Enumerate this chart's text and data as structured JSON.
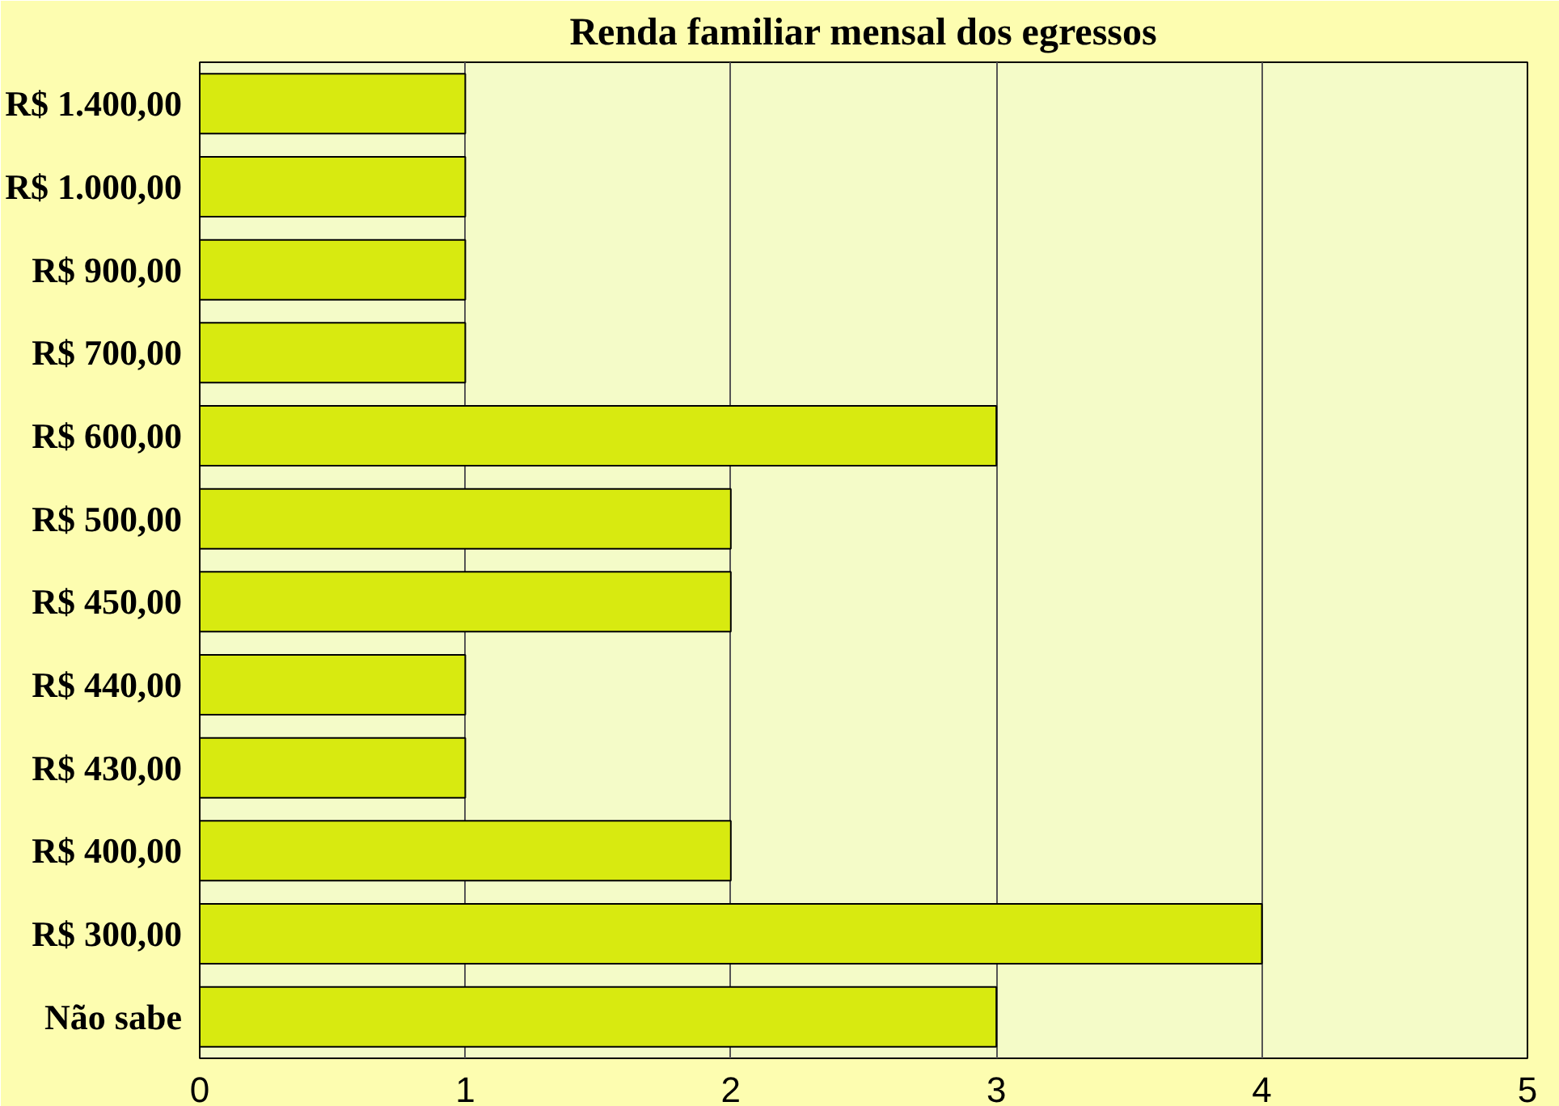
{
  "chart_data": {
    "type": "bar",
    "orientation": "horizontal",
    "title": "Renda familiar mensal dos egressos",
    "categories": [
      "R$ 1.400,00",
      "R$ 1.000,00",
      "R$ 900,00",
      "R$ 700,00",
      "R$ 600,00",
      "R$ 500,00",
      "R$ 450,00",
      "R$ 440,00",
      "R$ 430,00",
      "R$ 400,00",
      "R$ 300,00",
      "Não sabe"
    ],
    "values": [
      1,
      1,
      1,
      1,
      3,
      2,
      2,
      1,
      1,
      2,
      4,
      3
    ],
    "color": "#d8ea10",
    "xlim": [
      0,
      5
    ],
    "xticks": [
      0,
      1,
      2,
      3,
      4,
      5
    ],
    "grid": "x"
  }
}
